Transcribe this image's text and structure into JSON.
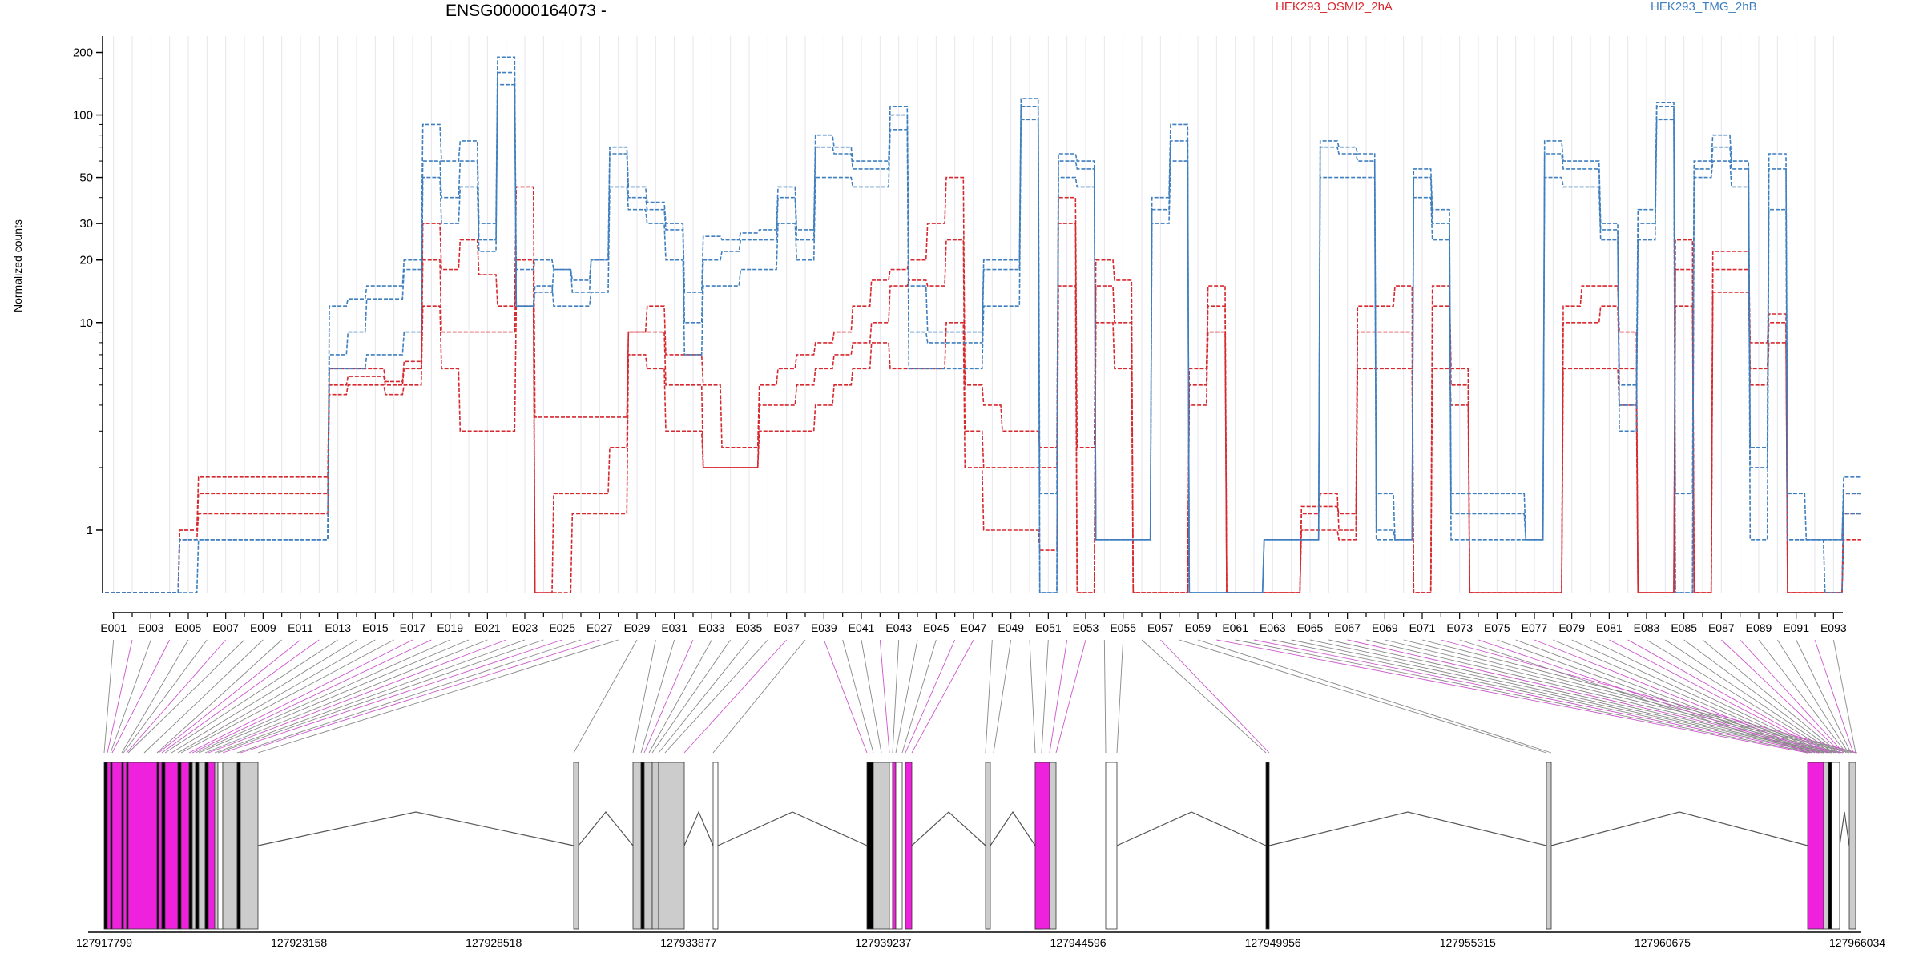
{
  "chart_data": {
    "type": "line",
    "title": "ENSG00000164073 -",
    "ylabel": "Normalized counts",
    "yscale": "log",
    "yticks": [
      1,
      10,
      20,
      30,
      50,
      100,
      200
    ],
    "legend": [
      {
        "name": "HEK293_OSMI2_2hA",
        "color": "#d7282f"
      },
      {
        "name": "HEK293_TMG_2hB",
        "color": "#3f7fbf"
      }
    ],
    "exon_tick_labels": [
      "E001",
      "E003",
      "E005",
      "E007",
      "E009",
      "E011",
      "E013",
      "E015",
      "E017",
      "E019",
      "E021",
      "E023",
      "E025",
      "E027",
      "E029",
      "E031",
      "E033",
      "E035",
      "E037",
      "E039",
      "E041",
      "E043",
      "E045",
      "E047",
      "E049",
      "E051",
      "E053",
      "E055",
      "E057",
      "E059",
      "E061",
      "E063",
      "E065",
      "E067",
      "E069",
      "E071",
      "E073",
      "E075",
      "E077",
      "E079",
      "E081",
      "E083",
      "E085",
      "E087",
      "E089",
      "E091",
      "E093"
    ],
    "genomic_ticks": [
      "127917799",
      "127923158",
      "127928518",
      "127933877",
      "127939237",
      "127944596",
      "127949956",
      "127955315",
      "127960675",
      "127966034"
    ],
    "n_exons": 93,
    "series": [
      {
        "name": "HEK293_OSMI2_2hA",
        "color": "#d7282f",
        "values": [
          0.5,
          0.5,
          0.5,
          0.5,
          1.0,
          1.8,
          1.8,
          1.8,
          1.8,
          1.8,
          1.8,
          1.8,
          6,
          6,
          6,
          5.2,
          6.5,
          30,
          18,
          25,
          17,
          12,
          45,
          3.5,
          3.5,
          3.5,
          3.5,
          3.5,
          9,
          12,
          7,
          7,
          5,
          2.5,
          2.5,
          5,
          6,
          7,
          8,
          9,
          12,
          16,
          18,
          20,
          30,
          50,
          5,
          4,
          3,
          3,
          2.5,
          40,
          2.5,
          20,
          16,
          0.5,
          0.5,
          0.5,
          6,
          15,
          0.5,
          0.5,
          0.5,
          0.5,
          1.3,
          1.3,
          1.2,
          12,
          12,
          15,
          0.5,
          15,
          6,
          0.5,
          0.5,
          0.5,
          0.5,
          0.5,
          12,
          15,
          15,
          9,
          0.5,
          0.5,
          25,
          0.5,
          22,
          22,
          8,
          11,
          0.5,
          0.5,
          0.5,
          1.5
        ]
      },
      {
        "name": "HEK293_OSMI2_2hA",
        "color": "#d7282f",
        "values": [
          0.5,
          0.5,
          0.5,
          0.5,
          1.0,
          1.5,
          1.5,
          1.5,
          1.5,
          1.5,
          1.5,
          1.5,
          5,
          5.5,
          5.5,
          5,
          6,
          20,
          9,
          9,
          9,
          9,
          20,
          0.5,
          1.5,
          1.5,
          1.5,
          2.5,
          9,
          9,
          5,
          5,
          2,
          2,
          2,
          4,
          4,
          5,
          6,
          7,
          8,
          10,
          15,
          16,
          15,
          25,
          3,
          2,
          2,
          2,
          2,
          30,
          0.5,
          15,
          10,
          0.5,
          0.5,
          0.5,
          5,
          12,
          0.5,
          0.5,
          0.5,
          0.5,
          1.2,
          1.5,
          1.0,
          9,
          9,
          9,
          0.5,
          12,
          5,
          0.5,
          0.5,
          0.5,
          0.5,
          0.5,
          10,
          10,
          12,
          6,
          0.5,
          0.5,
          18,
          0.5,
          18,
          18,
          6,
          10,
          0.5,
          0.5,
          0.5,
          1.2
        ]
      },
      {
        "name": "HEK293_OSMI2_2hA",
        "color": "#d7282f",
        "values": [
          0.5,
          0.5,
          0.5,
          0.5,
          0.9,
          1.2,
          1.2,
          1.2,
          1.2,
          1.2,
          1.2,
          1.2,
          4.5,
          5,
          5,
          4.5,
          5,
          12,
          6,
          3,
          3,
          3,
          12,
          0.5,
          0.5,
          1.2,
          1.2,
          1.2,
          7,
          6,
          3,
          3,
          2,
          2,
          2,
          3,
          3,
          3,
          4,
          5,
          6,
          8,
          6,
          6,
          6,
          10,
          2,
          1,
          1,
          1,
          0.8,
          15,
          0.5,
          10,
          6,
          0.5,
          0.5,
          0.5,
          4,
          9,
          0.5,
          0.5,
          0.5,
          0.5,
          1.0,
          1.0,
          0.9,
          6,
          6,
          6,
          0.5,
          6,
          4,
          0.5,
          0.5,
          0.5,
          0.5,
          0.5,
          6,
          6,
          6,
          4,
          0.5,
          0.5,
          12,
          0.5,
          14,
          14,
          5,
          8,
          0.5,
          0.5,
          0.5,
          0.9
        ]
      },
      {
        "name": "HEK293_TMG_2hB",
        "color": "#3f7fbf",
        "values": [
          0.5,
          0.5,
          0.5,
          0.5,
          0.9,
          0.9,
          0.9,
          0.9,
          0.9,
          0.9,
          0.9,
          0.9,
          12,
          13,
          15,
          15,
          20,
          90,
          60,
          75,
          30,
          190,
          12,
          14,
          18,
          14,
          20,
          70,
          45,
          38,
          30,
          14,
          26,
          25,
          27,
          28,
          45,
          28,
          80,
          70,
          60,
          60,
          110,
          15,
          9,
          9,
          9,
          20,
          20,
          120,
          1.5,
          65,
          60,
          0.9,
          0.9,
          0.9,
          40,
          90,
          0.5,
          0.5,
          0.5,
          0.5,
          0.9,
          0.9,
          0.9,
          75,
          70,
          65,
          1.5,
          0.9,
          55,
          35,
          1.5,
          1.5,
          1.5,
          1.5,
          0.9,
          75,
          60,
          60,
          30,
          5,
          35,
          115,
          1.5,
          60,
          80,
          60,
          2.5,
          65,
          1.5,
          0.9,
          0.9,
          1.8
        ]
      },
      {
        "name": "HEK293_TMG_2hB",
        "color": "#3f7fbf",
        "values": [
          0.5,
          0.5,
          0.5,
          0.5,
          0.9,
          0.9,
          0.9,
          0.9,
          0.9,
          0.9,
          0.9,
          0.9,
          7,
          9,
          13,
          13,
          18,
          60,
          40,
          60,
          25,
          160,
          18,
          20,
          18,
          16,
          20,
          65,
          40,
          35,
          28,
          10,
          20,
          22,
          25,
          25,
          40,
          25,
          70,
          65,
          55,
          55,
          100,
          9,
          8,
          8,
          8,
          18,
          18,
          110,
          0.5,
          60,
          55,
          0.9,
          0.9,
          0.9,
          35,
          75,
          0.5,
          0.5,
          0.5,
          0.5,
          0.9,
          0.9,
          0.9,
          70,
          65,
          60,
          1.0,
          0.9,
          50,
          30,
          1.2,
          1.2,
          1.2,
          1.2,
          0.9,
          65,
          55,
          55,
          28,
          4,
          30,
          110,
          0.5,
          55,
          70,
          55,
          2,
          55,
          0.9,
          0.9,
          0.9,
          1.5
        ]
      },
      {
        "name": "HEK293_TMG_2hB",
        "color": "#3f7fbf",
        "values": [
          0.5,
          0.5,
          0.5,
          0.5,
          0.5,
          0.9,
          0.9,
          0.9,
          0.9,
          0.9,
          0.9,
          0.9,
          6,
          6,
          7,
          7,
          9,
          50,
          30,
          45,
          22,
          140,
          12,
          15,
          12,
          12,
          14,
          45,
          35,
          30,
          20,
          7,
          15,
          15,
          18,
          18,
          30,
          20,
          50,
          50,
          45,
          45,
          85,
          6,
          6,
          6,
          6,
          12,
          12,
          95,
          0.5,
          50,
          45,
          0.9,
          0.9,
          0.9,
          30,
          60,
          0.5,
          0.5,
          0.5,
          0.5,
          0.9,
          0.9,
          0.9,
          50,
          50,
          50,
          0.9,
          0.9,
          40,
          25,
          0.9,
          0.9,
          0.9,
          0.9,
          0.9,
          50,
          45,
          45,
          25,
          3,
          25,
          95,
          0.5,
          50,
          60,
          45,
          0.9,
          35,
          0.9,
          0.9,
          0.5,
          1.2
        ]
      }
    ],
    "exon_highlight_color": "#ee22dd",
    "exon_gray_color": "#cccccc"
  }
}
